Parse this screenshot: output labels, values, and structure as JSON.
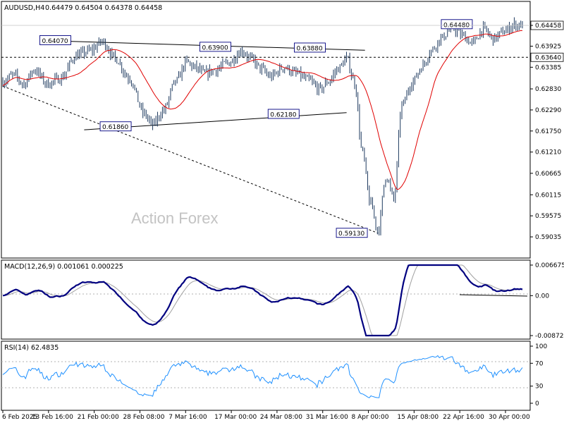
{
  "header": {
    "symbol": "AUDUSD,H4",
    "ohlc": "0.64479 0.64504 0.64378 0.64458"
  },
  "watermark": "Action Forex",
  "chart_data": [
    {
      "type": "candlestick",
      "name": "price",
      "symbol": "AUDUSD",
      "timeframe": "H4",
      "ylim": [
        0.5888,
        0.6485
      ],
      "y_ticks": [
        "0.64458",
        "0.63925",
        "0.63385",
        "0.62830",
        "0.62290",
        "0.61750",
        "0.61210",
        "0.60665",
        "0.60115",
        "0.59575",
        "0.59035"
      ],
      "last_price": "0.64458",
      "level_label": "0.63640",
      "level_line": 0.6364,
      "x_labels": [
        "6 Feb 2025",
        "13 Feb 16:00",
        "21 Feb 00:00",
        "28 Feb 08:00",
        "7 Mar 16:00",
        "17 Mar 00:00",
        "24 Mar 08:00",
        "31 Mar 16:00",
        "8 Apr 00:00",
        "15 Apr 08:00",
        "22 Apr 16:00",
        "30 Apr 00:00"
      ],
      "annotations": [
        "0.64070",
        "0.63900",
        "0.63880",
        "0.64480",
        "0.61860",
        "0.62180",
        "0.59130"
      ],
      "moving_average": {
        "color": "#e00000"
      },
      "colors": {
        "candles": "#1e3a5f",
        "ma": "#e00000",
        "level": "#000000"
      }
    },
    {
      "type": "line",
      "name": "macd",
      "title": "MACD(12,26,9) 0.001061 0.000225",
      "y_ticks": [
        "0.006675",
        "0.00",
        "-0.008724"
      ],
      "ylim": [
        -0.008724,
        0.006675
      ],
      "colors": {
        "macd": "#000080",
        "signal": "#a0a0a0"
      }
    },
    {
      "type": "line",
      "name": "rsi",
      "title": "RSI(14) 62.4835",
      "y_ticks": [
        "100",
        "70",
        "30",
        "0"
      ],
      "ylim": [
        0,
        100
      ],
      "last_value": 62.4835,
      "colors": {
        "rsi": "#1e90ff"
      }
    }
  ]
}
